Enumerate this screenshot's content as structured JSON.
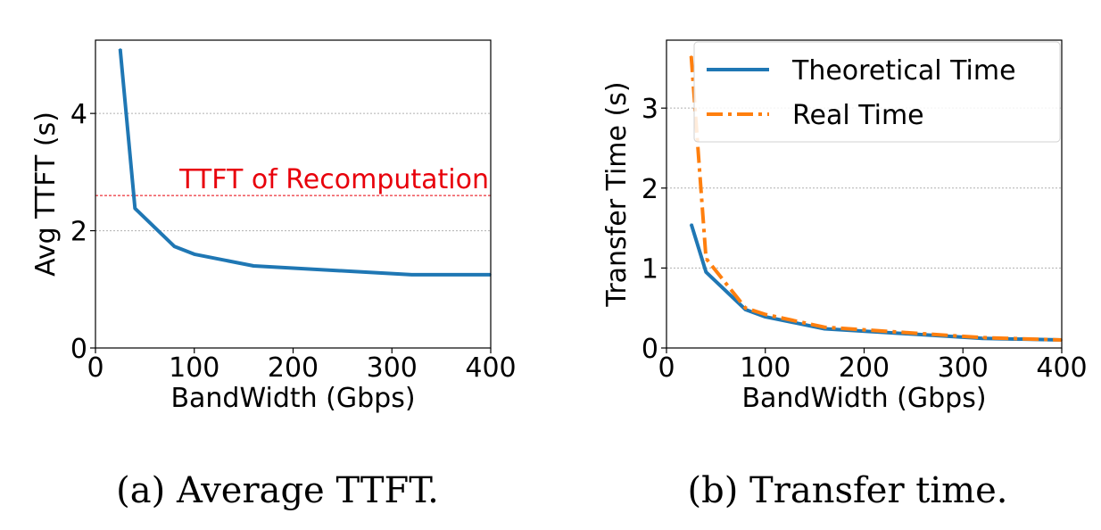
{
  "captions": {
    "a": "(a) Average TTFT.",
    "b": "(b) Transfer time."
  },
  "chart_data": [
    {
      "type": "line",
      "title": "",
      "xlabel": "BandWidth (Gbps)",
      "ylabel": "Avg TTFT (s)",
      "xlim": [
        0,
        400
      ],
      "ylim": [
        0,
        5.25
      ],
      "xticks": [
        0,
        100,
        200,
        300,
        400
      ],
      "yticks": [
        0,
        2,
        4
      ],
      "grid": "horizontal",
      "series": [
        {
          "color": "#1f77b4",
          "style": "solid",
          "x": [
            25,
            40,
            80,
            100,
            160,
            320,
            400
          ],
          "y": [
            5.1,
            2.38,
            1.73,
            1.6,
            1.4,
            1.25,
            1.25
          ]
        }
      ],
      "reference_line": {
        "y": 2.6,
        "color": "#e8000b",
        "label": "TTFT of Recomputation"
      }
    },
    {
      "type": "line",
      "title": "",
      "xlabel": "BandWidth (Gbps)",
      "ylabel": "Transfer Time (s)",
      "xlim": [
        0,
        400
      ],
      "ylim": [
        0,
        3.85
      ],
      "xticks": [
        0,
        100,
        200,
        300,
        400
      ],
      "yticks": [
        0,
        1,
        2,
        3
      ],
      "grid": "horizontal",
      "legend_position": "top-right",
      "series": [
        {
          "name": "Theoretical Time",
          "color": "#1f77b4",
          "style": "solid",
          "x": [
            25,
            40,
            80,
            100,
            160,
            320,
            400
          ],
          "y": [
            1.55,
            0.95,
            0.48,
            0.39,
            0.24,
            0.12,
            0.1
          ]
        },
        {
          "name": "Real Time",
          "color": "#ff7f0e",
          "style": "dashdot",
          "x": [
            25,
            40,
            80,
            100,
            160,
            320,
            400
          ],
          "y": [
            3.65,
            1.12,
            0.5,
            0.42,
            0.26,
            0.13,
            0.1
          ]
        }
      ]
    }
  ]
}
